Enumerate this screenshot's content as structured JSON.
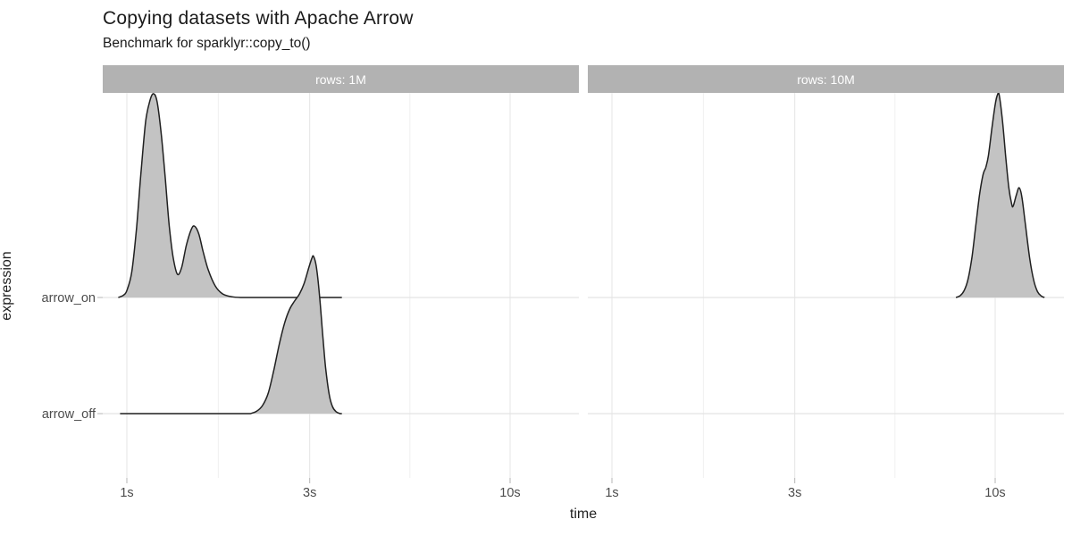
{
  "chart_data": {
    "type": "area",
    "subtype": "density-ridgeline",
    "title": "Copying datasets with Apache Arrow",
    "subtitle": "Benchmark for sparklyr::copy_to()",
    "legend": "none",
    "grid": true,
    "facets": [
      {
        "label": "rows: 1M"
      },
      {
        "label": "rows: 10M"
      }
    ],
    "x": {
      "label": "time",
      "scale": "log10",
      "unit": "seconds",
      "range": [
        0.865,
        15.1
      ],
      "ticks": [
        {
          "value": 1,
          "label": "1s"
        },
        {
          "value": 3,
          "label": "3s"
        },
        {
          "value": 10,
          "label": "10s"
        }
      ],
      "minor_ticks": [
        1.7321,
        5.4772
      ]
    },
    "y": {
      "label": "expression",
      "categories": [
        "arrow_on",
        "arrow_off"
      ]
    },
    "series": [
      {
        "facet": 0,
        "row": "arrow_on",
        "note": "1M rows with Arrow enabled: bimodal density ~1.2s and ~1.5s",
        "line_extent": [
          0.95,
          3.64
        ],
        "points": [
          [
            0.95,
            0
          ],
          [
            0.98,
            0.02
          ],
          [
            1.0,
            0.06
          ],
          [
            1.03,
            0.22
          ],
          [
            1.06,
            0.6
          ],
          [
            1.09,
            1.1
          ],
          [
            1.12,
            1.52
          ],
          [
            1.15,
            1.7
          ],
          [
            1.175,
            1.754
          ],
          [
            1.2,
            1.68
          ],
          [
            1.23,
            1.4
          ],
          [
            1.26,
            1.02
          ],
          [
            1.29,
            0.62
          ],
          [
            1.32,
            0.35
          ],
          [
            1.355,
            0.2
          ],
          [
            1.39,
            0.26
          ],
          [
            1.43,
            0.45
          ],
          [
            1.47,
            0.58
          ],
          [
            1.5,
            0.615
          ],
          [
            1.54,
            0.55
          ],
          [
            1.58,
            0.4
          ],
          [
            1.63,
            0.24
          ],
          [
            1.7,
            0.1
          ],
          [
            1.78,
            0.03
          ],
          [
            1.88,
            0.006
          ],
          [
            2.0,
            0
          ]
        ]
      },
      {
        "facet": 0,
        "row": "arrow_off",
        "note": "1M rows without Arrow: density ~2.4-3.5s peaking ~3.05s",
        "line_extent": [
          0.96,
          3.64
        ],
        "points": [
          [
            2.1,
            0
          ],
          [
            2.18,
            0.02
          ],
          [
            2.26,
            0.07
          ],
          [
            2.34,
            0.18
          ],
          [
            2.42,
            0.38
          ],
          [
            2.5,
            0.6
          ],
          [
            2.58,
            0.78
          ],
          [
            2.66,
            0.9
          ],
          [
            2.74,
            0.97
          ],
          [
            2.82,
            1.03
          ],
          [
            2.9,
            1.12
          ],
          [
            2.98,
            1.25
          ],
          [
            3.04,
            1.34
          ],
          [
            3.07,
            1.354
          ],
          [
            3.12,
            1.27
          ],
          [
            3.18,
            1.03
          ],
          [
            3.24,
            0.7
          ],
          [
            3.3,
            0.4
          ],
          [
            3.37,
            0.17
          ],
          [
            3.44,
            0.06
          ],
          [
            3.52,
            0.015
          ],
          [
            3.6,
            0
          ]
        ]
      },
      {
        "facet": 1,
        "row": "arrow_on",
        "note": "10M rows with Arrow enabled: density ~8-13s, main peak ~10.2s, secondary ~11.6s",
        "line_extent": [
          7.9,
          13.45
        ],
        "points": [
          [
            7.9,
            0
          ],
          [
            8.1,
            0.015
          ],
          [
            8.3,
            0.06
          ],
          [
            8.5,
            0.16
          ],
          [
            8.7,
            0.35
          ],
          [
            8.9,
            0.62
          ],
          [
            9.1,
            0.88
          ],
          [
            9.3,
            1.06
          ],
          [
            9.45,
            1.12
          ],
          [
            9.6,
            1.22
          ],
          [
            9.8,
            1.45
          ],
          [
            10.0,
            1.66
          ],
          [
            10.15,
            1.75
          ],
          [
            10.25,
            1.74
          ],
          [
            10.45,
            1.52
          ],
          [
            10.65,
            1.22
          ],
          [
            10.85,
            0.95
          ],
          [
            11.05,
            0.8
          ],
          [
            11.15,
            0.79
          ],
          [
            11.35,
            0.88
          ],
          [
            11.55,
            0.945
          ],
          [
            11.75,
            0.86
          ],
          [
            12.0,
            0.62
          ],
          [
            12.3,
            0.34
          ],
          [
            12.6,
            0.15
          ],
          [
            12.9,
            0.05
          ],
          [
            13.2,
            0.012
          ],
          [
            13.45,
            0
          ]
        ]
      }
    ],
    "colors": {
      "density_fill": "#c3c3c3",
      "density_stroke": "#202020",
      "strip_bg": "#b2b2b2",
      "strip_text": "#ffffff",
      "grid_major": "#e4e4e4",
      "grid_minor": "#f0f0f0",
      "tick_mark": "#b5b5b5",
      "axis_text": "#4d4d4d",
      "title_text": "#1a1a1a"
    }
  }
}
